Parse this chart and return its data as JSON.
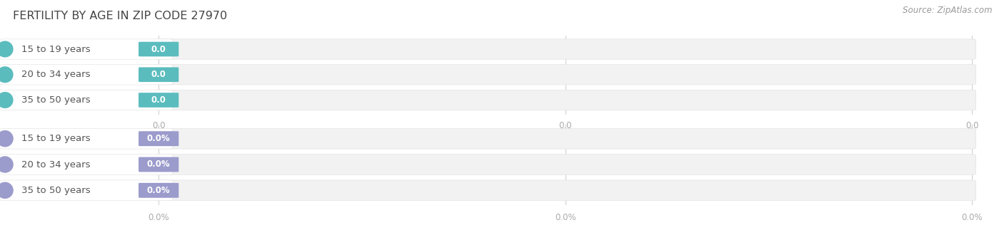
{
  "title": "FERTILITY BY AGE IN ZIP CODE 27970",
  "source": "Source: ZipAtlas.com",
  "top_group": {
    "categories": [
      "15 to 19 years",
      "20 to 34 years",
      "35 to 50 years"
    ],
    "values": [
      0.0,
      0.0,
      0.0
    ],
    "bar_color": "#5bbcbe",
    "x_tick_labels": [
      "0.0",
      "0.0",
      "0.0"
    ],
    "x_tick_values": [
      0.0,
      0.5,
      1.0
    ],
    "value_suffix": ""
  },
  "bottom_group": {
    "categories": [
      "15 to 19 years",
      "20 to 34 years",
      "35 to 50 years"
    ],
    "values": [
      0.0,
      0.0,
      0.0
    ],
    "bar_color": "#9b9bcc",
    "x_tick_labels": [
      "0.0%",
      "0.0%",
      "0.0%"
    ],
    "x_tick_values": [
      0.0,
      0.5,
      1.0
    ],
    "value_suffix": "%"
  },
  "background_color": "#ffffff",
  "bar_bg_color": "#f2f2f2",
  "title_fontsize": 11.5,
  "label_fontsize": 9.5,
  "value_fontsize": 8.5,
  "tick_fontsize": 8.5,
  "source_fontsize": 8.5,
  "source_color": "#999999",
  "title_color": "#444444",
  "category_label_color": "#555555",
  "tick_color": "#aaaaaa",
  "grid_color": "#cccccc"
}
